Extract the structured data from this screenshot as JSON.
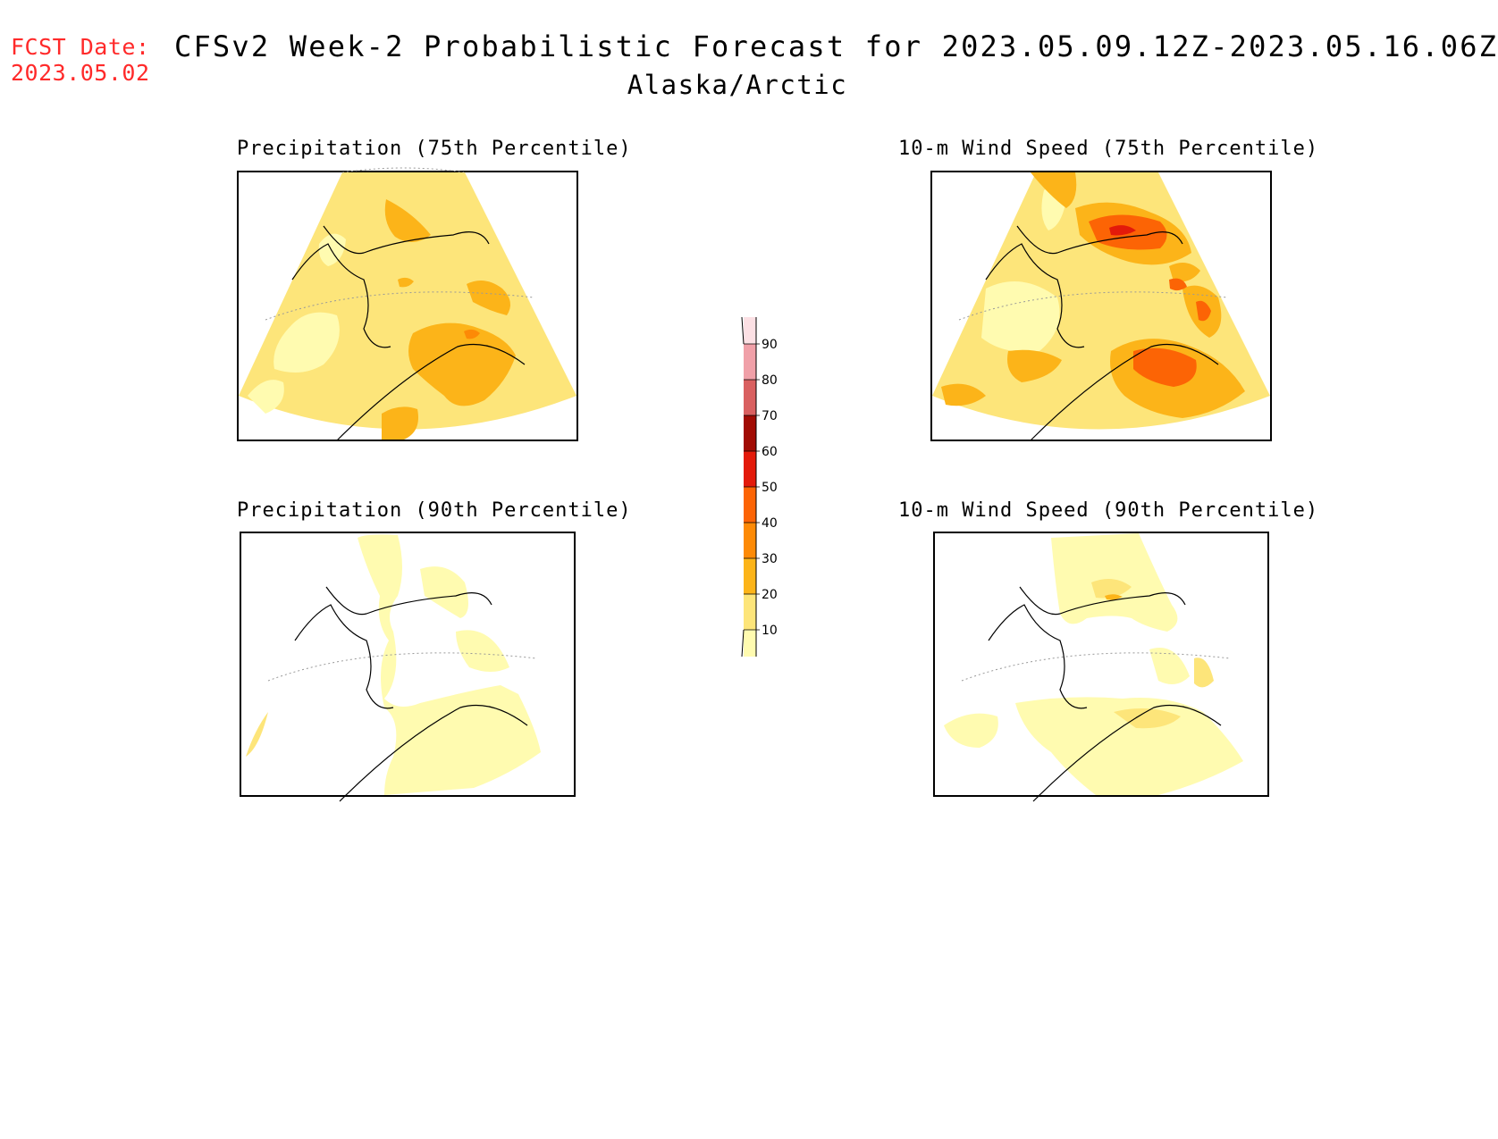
{
  "header": {
    "fcst_label": "FCST Date:",
    "fcst_date": "2023.05.02",
    "title": "CFSv2 Week-2 Probabilistic Forecast for 2023.05.09.12Z-2023.05.16.06Z",
    "region": "Alaska/Arctic"
  },
  "panels": [
    {
      "title": "Precipitation (75th Percentile)"
    },
    {
      "title": "10-m Wind Speed (75th Percentile)"
    },
    {
      "title": "Precipitation (90th Percentile)"
    },
    {
      "title": "10-m Wind Speed (90th Percentile)"
    }
  ],
  "colorbar": {
    "levels": [
      "10",
      "20",
      "30",
      "40",
      "50",
      "60",
      "70",
      "80",
      "90"
    ],
    "colors": [
      "#fffbb0",
      "#fde57a",
      "#fcb419",
      "#fd8a06",
      "#fc6405",
      "#e31a0a",
      "#a10c04",
      "#d96060",
      "#f0a0a8",
      "#fce0e4"
    ]
  }
}
